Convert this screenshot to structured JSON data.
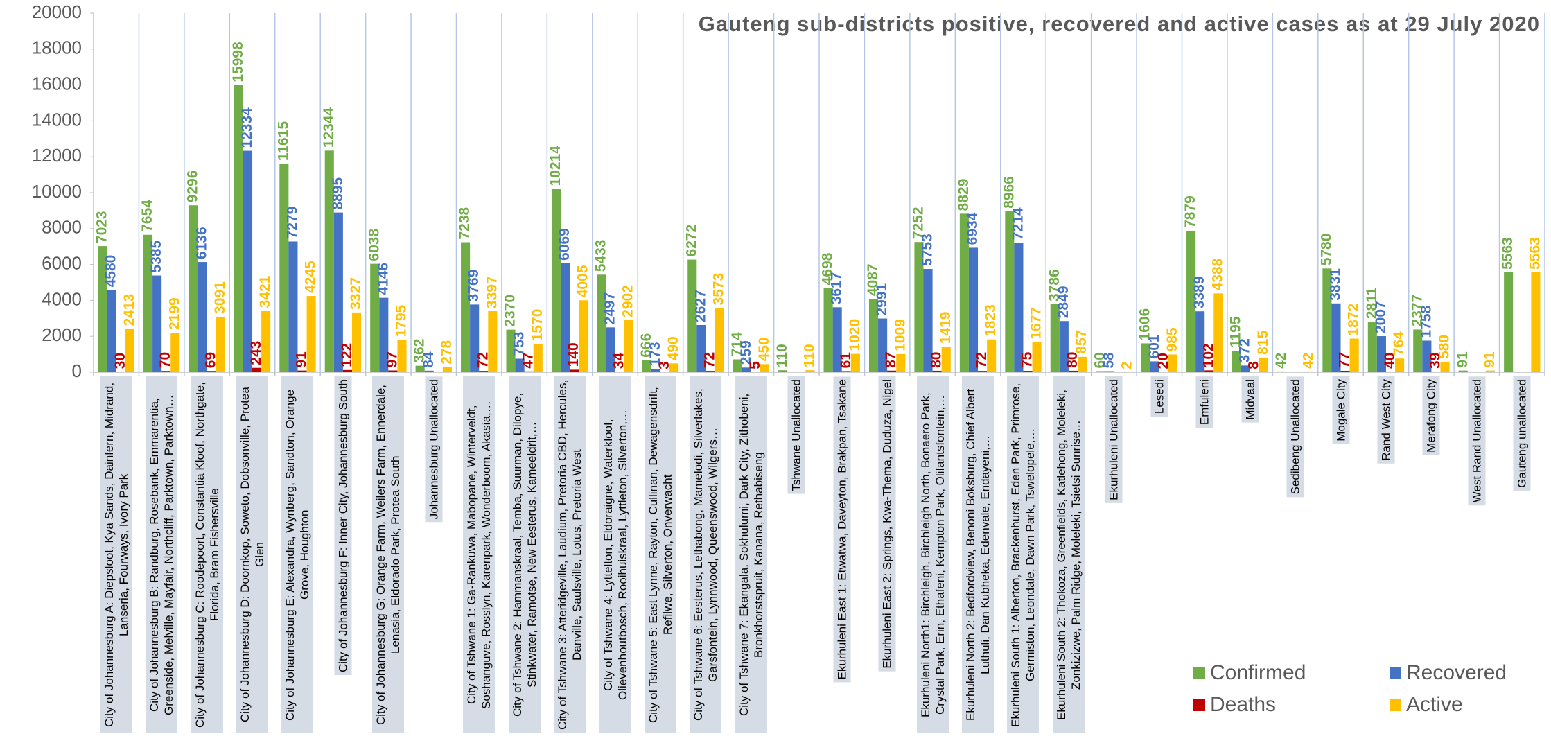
{
  "chart_data": {
    "type": "bar",
    "title": "Gauteng sub-districts positive, recovered and active cases as at  29 July 2020",
    "categories": [
      "City of Johannesburg A: Diepsloot, Kya Sands, Dainfern, Midrand, Lanseria, Fourways, Ivory Park",
      "City of Johannesburg B: Randburg, Rosebank, Emmarentia, Greenside, Melville, Mayfair, Northcliff, Parktown, Parktown…",
      "City of Johannesburg C: Roodepoort, Constantia Kloof, Northgate, Florida, Bram Fishersville",
      "City of Johannesburg D: Doornkop, Soweto, Dobsonville, Protea Glen",
      "City of Johannesburg E: Alexandra, Wynberg, Sandton, Orange Grove, Houghton",
      "City of Johannesburg F: Inner City, Johannesburg South",
      "City of Johannesburg G: Orange Farm, Weilers Farm, Ennerdale, Lenasia, Eldorado Park, Protea South",
      "Johannesburg Unallocated",
      "City of Tshwane 1: Ga-Rankuwa, Mabopane, Winterveldt, Soshanguve, Rosslyn, Karenpark, Wonderboom, Akasia,…",
      "City of Tshwane 2: Hammanskraal, Temba, Suurman, Dilopye, Stinkwater, Ramotse, New Eesterus, Kameeldrit,…",
      "City of Tshwane 3: Atteridgeville, Laudium, Pretoria CBD, Hercules, Danville, Saulsville, Lotus, Pretoria West",
      "City of Tshwane 4: Lyttelton, Eldoraigne, Waterkloof, Olievenhoutbosch, Rooihuiskraal, Lyttleton, Silverton,…",
      "City of Tshwane 5: East Lynne, Rayton, Cullinan, Dewagensdrift, Refilwe, Silverton, Onverwacht",
      "City of Tshwane 6: Eesterus, Lethabong, Mamelodi, Silverlakes, Garsfontein, Lynnwood, Queenswood, Wilgers…",
      "City of Tshwane 7: Ekangala, Sokhulumi, Dark City, Zithobeni, Bronkhorstspruit, Kanana, Rethabiseng",
      "Tshwane Unallocated",
      "Ekurhuleni East 1: Etwatwa, Daveyton, Brakpan, Tsakane",
      "Ekurhuleni East 2: Springs, Kwa-Thema, Duduza, Nigel",
      "Ekurhuleni North1: Birchleigh, Birchleigh North, Bonaero Park, Crystal Park, Erin, Ethafeni, Kempton Park, Olifantsfontein,…",
      "Ekurhuleni North 2: Bedfordview, Benoni Boksburg, Chief Albert Luthuli, Dan Kubheka, Edenvale, Endayeni,…",
      "Ekurhuleni South 1:  Alberton, Brackenhurst, Eden Park, Primrose, Germiston, Leondale, Dawn Park, Tswelopele,…",
      "Ekurhuleni South 2: Thokoza, Greenfields, Katlehong, Moleleki, Zonkizizwe, Palm Ridge, Moleleki, Tsietsi Sunrise…",
      "Ekurhuleni Unallocated",
      "Lesedi",
      "Emfuleni",
      "Midvaal",
      "Sedibeng Unallocated",
      "Mogale City",
      "Rand West City",
      "Merafong City",
      "West Rand Unallocated",
      "Gauteng unallocated"
    ],
    "series": [
      {
        "name": "Confirmed",
        "color": "#70ad47",
        "values": [
          7023,
          7654,
          9296,
          15998,
          11615,
          12344,
          6038,
          362,
          7238,
          2370,
          10214,
          5433,
          666,
          6272,
          714,
          110,
          4698,
          4087,
          7252,
          8829,
          8966,
          3786,
          60,
          1606,
          7879,
          1195,
          42,
          5780,
          2811,
          2377,
          91,
          5563
        ]
      },
      {
        "name": "Recovered",
        "color": "#4472c4",
        "values": [
          4580,
          5385,
          6136,
          12334,
          7279,
          8895,
          4146,
          84,
          3769,
          753,
          6069,
          2497,
          173,
          2627,
          259,
          null,
          3617,
          2991,
          5753,
          6934,
          7214,
          2849,
          58,
          601,
          3389,
          372,
          null,
          3831,
          2007,
          1758,
          null,
          null
        ]
      },
      {
        "name": "Deaths",
        "color": "#c00000",
        "values": [
          30,
          70,
          69,
          243,
          91,
          122,
          97,
          null,
          72,
          47,
          140,
          34,
          3,
          72,
          5,
          null,
          61,
          87,
          80,
          72,
          75,
          80,
          null,
          20,
          102,
          8,
          null,
          77,
          40,
          39,
          null,
          null
        ]
      },
      {
        "name": "Active",
        "color": "#ffc000",
        "values": [
          2413,
          2199,
          3091,
          3421,
          4245,
          3327,
          1795,
          278,
          3397,
          1570,
          4005,
          2902,
          490,
          3573,
          450,
          110,
          1020,
          1009,
          1419,
          1823,
          1677,
          857,
          2,
          985,
          4388,
          815,
          42,
          1872,
          764,
          580,
          91,
          5563
        ]
      }
    ],
    "ylim": [
      0,
      20000
    ],
    "yticks": [
      0,
      2000,
      4000,
      6000,
      8000,
      10000,
      12000,
      14000,
      16000,
      18000,
      20000
    ],
    "legend": "bottom-right"
  }
}
